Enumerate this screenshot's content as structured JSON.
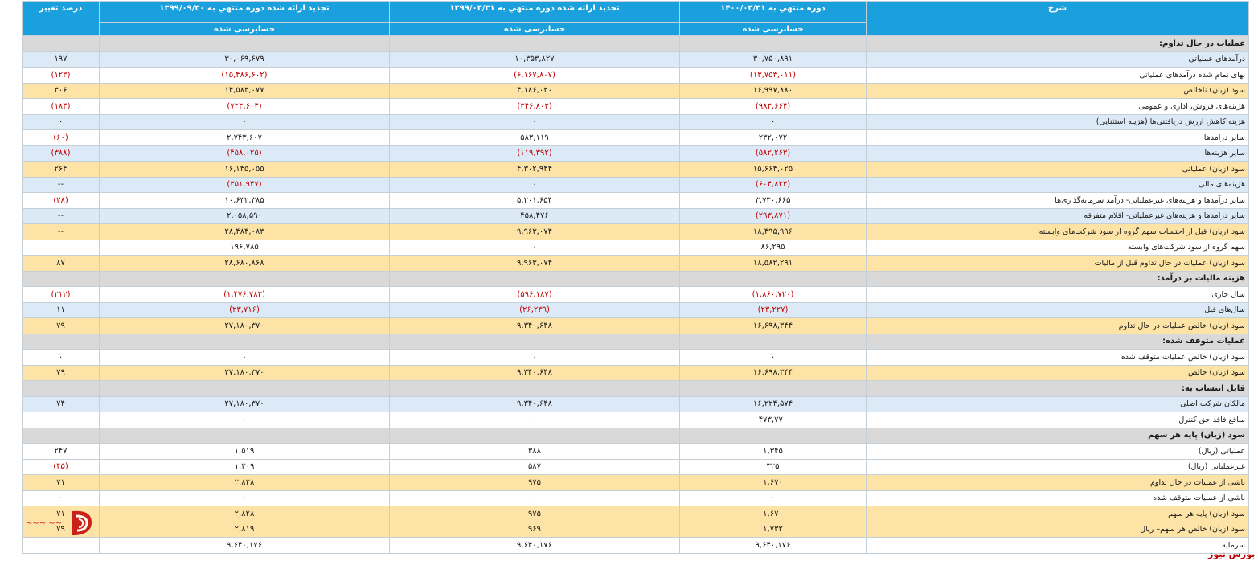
{
  "brand": {
    "name": "بورس نیوز",
    "accent": "#c00000"
  },
  "colors": {
    "header": "#1aa0dc",
    "section": "#d9d9d9",
    "row_blue": "#dce9f6",
    "row_white": "#ffffff",
    "row_total": "#fde4a6",
    "negative": "#c00000"
  },
  "header": {
    "desc": "شرح",
    "period1": "دوره منتهي به ۱۴۰۰/۰۳/۳۱",
    "period2": "تجدید ارائه شده دوره منتهي به ۱۳۹۹/۰۳/۳۱",
    "period3": "تجدید ارائه شده دوره منتهي به ۱۳۹۹/۰۹/۳۰",
    "change": "درصد تغییر",
    "audit1": "حسابرسی شده",
    "audit2": "حسابرسی شده",
    "audit3": "حسابرسی شده"
  },
  "rows": [
    {
      "type": "section",
      "label": "عملیات در حال تداوم:",
      "v1": "",
      "v2": "",
      "v3": "",
      "chg": ""
    },
    {
      "type": "blue",
      "label": "درآمدهای عملیاتی",
      "v1": "۳۰,۷۵۰,۸۹۱",
      "v2": "۱۰,۳۵۳,۸۲۷",
      "v3": "۳۰,۰۶۹,۶۷۹",
      "chg": "۱۹۷"
    },
    {
      "type": "white",
      "label": "بهای تمام شده درآمدهای عملیاتی",
      "v1": "(۱۳,۷۵۳,۰۱۱)",
      "v2": "(۶,۱۶۷,۸۰۷)",
      "v3": "(۱۵,۴۸۶,۶۰۲)",
      "chg": "(۱۲۳)",
      "neg": true
    },
    {
      "type": "total",
      "label": "سود (زیان) ناخالص",
      "v1": "۱۶,۹۹۷,۸۸۰",
      "v2": "۴,۱۸۶,۰۲۰",
      "v3": "۱۴,۵۸۳,۰۷۷",
      "chg": "۳۰۶"
    },
    {
      "type": "white",
      "label": "هزینه‌های فروش، اداری و عمومی",
      "v1": "(۹۸۳,۶۶۴)",
      "v2": "(۳۴۶,۸۰۳)",
      "v3": "(۷۲۳,۶۰۴)",
      "chg": "(۱۸۴)",
      "neg": true
    },
    {
      "type": "blue",
      "label": "هزینه کاهش ارزش دریافتنی‌ها (هزینه استثنایی)",
      "v1": "۰",
      "v2": "۰",
      "v3": "۰",
      "chg": "۰"
    },
    {
      "type": "white",
      "label": "سایر درآمدها",
      "v1": "۲۳۲,۰۷۲",
      "v2": "۵۸۳,۱۱۹",
      "v3": "۲,۷۴۳,۶۰۷",
      "chg": "(۶۰)",
      "negChg": true
    },
    {
      "type": "blue",
      "label": "سایر هزینه‌ها",
      "v1": "(۵۸۲,۲۶۳)",
      "v2": "(۱۱۹,۳۹۲)",
      "v3": "(۴۵۸,۰۲۵)",
      "chg": "(۳۸۸)",
      "neg": true
    },
    {
      "type": "total",
      "label": "سود (زیان) عملیاتی",
      "v1": "۱۵,۶۶۴,۰۲۵",
      "v2": "۴,۳۰۲,۹۴۴",
      "v3": "۱۶,۱۴۵,۰۵۵",
      "chg": "۲۶۴"
    },
    {
      "type": "blue",
      "label": "هزینه‌های مالی",
      "v1": "(۶۰۴,۸۲۳)",
      "v2": "۰",
      "v3": "(۳۵۱,۹۴۷)",
      "chg": "--",
      "negV1": true,
      "negV3": true
    },
    {
      "type": "white",
      "label": "سایر درآمدها و هزینه‌های غیرعملیاتی- درآمد سرمایه‌گذاری‌ها",
      "v1": "۳,۷۳۰,۶۶۵",
      "v2": "۵,۲۰۱,۶۵۴",
      "v3": "۱۰,۶۳۲,۳۸۵",
      "chg": "(۲۸)",
      "negChg": true
    },
    {
      "type": "blue",
      "label": "سایر درآمدها و هزینه‌های غیرعملیاتی- اقلام متفرقه",
      "v1": "(۲۹۳,۸۷۱)",
      "v2": "۴۵۸,۴۷۶",
      "v3": "۲,۰۵۸,۵۹۰",
      "chg": "--",
      "negV1": true
    },
    {
      "type": "total",
      "label": "سود (زیان) قبل از احتساب سهم گروه از سود شرکت‌های وابسته",
      "v1": "۱۸,۴۹۵,۹۹۶",
      "v2": "۹,۹۶۳,۰۷۴",
      "v3": "۲۸,۴۸۴,۰۸۳",
      "chg": "--"
    },
    {
      "type": "white",
      "label": "سهم گروه از سود شرکت‌های وابسته",
      "v1": "۸۶,۲۹۵",
      "v2": "۰",
      "v3": "۱۹۶,۷۸۵",
      "chg": ""
    },
    {
      "type": "total",
      "label": "سود (زیان) عملیات در حال تداوم قبل از مالیات",
      "v1": "۱۸,۵۸۲,۲۹۱",
      "v2": "۹,۹۶۳,۰۷۴",
      "v3": "۲۸,۶۸۰,۸۶۸",
      "chg": "۸۷"
    },
    {
      "type": "section",
      "label": "هزینه مالیات بر درآمد:",
      "v1": "",
      "v2": "",
      "v3": "",
      "chg": ""
    },
    {
      "type": "white",
      "label": "سال جاری",
      "v1": "(۱,۸۶۰,۷۲۰)",
      "v2": "(۵۹۶,۱۸۷)",
      "v3": "(۱,۴۷۶,۷۸۲)",
      "chg": "(۲۱۲)",
      "neg": true
    },
    {
      "type": "blue",
      "label": "سال‌های قبل",
      "v1": "(۲۳,۲۲۷)",
      "v2": "(۲۶,۲۳۹)",
      "v3": "(۲۳,۷۱۶)",
      "chg": "۱۱",
      "negV1": true,
      "negV2": true,
      "negV3": true
    },
    {
      "type": "total",
      "label": "سود (زیان) خالص عملیات در حال تداوم",
      "v1": "۱۶,۶۹۸,۳۴۴",
      "v2": "۹,۳۴۰,۶۴۸",
      "v3": "۲۷,۱۸۰,۳۷۰",
      "chg": "۷۹"
    },
    {
      "type": "section",
      "label": "عملیات متوقف شده:",
      "v1": "",
      "v2": "",
      "v3": "",
      "chg": ""
    },
    {
      "type": "white",
      "label": "سود (زیان) خالص عملیات متوقف شده",
      "v1": "۰",
      "v2": "۰",
      "v3": "۰",
      "chg": "۰"
    },
    {
      "type": "total",
      "label": "سود (زیان) خالص",
      "v1": "۱۶,۶۹۸,۳۴۴",
      "v2": "۹,۳۴۰,۶۴۸",
      "v3": "۲۷,۱۸۰,۳۷۰",
      "chg": "۷۹"
    },
    {
      "type": "section",
      "label": "قابل انتساب به:",
      "v1": "",
      "v2": "",
      "v3": "",
      "chg": ""
    },
    {
      "type": "blue",
      "label": "مالکان شرکت اصلی",
      "v1": "۱۶,۲۲۴,۵۷۴",
      "v2": "۹,۳۴۰,۶۴۸",
      "v3": "۲۷,۱۸۰,۳۷۰",
      "chg": "۷۴"
    },
    {
      "type": "white",
      "label": "منافع فاقد حق کنترل",
      "v1": "۴۷۳,۷۷۰",
      "v2": "۰",
      "v3": "۰",
      "chg": ""
    },
    {
      "type": "section",
      "label": "سود (زیان) پایه هر سهم",
      "v1": "",
      "v2": "",
      "v3": "",
      "chg": ""
    },
    {
      "type": "white",
      "label": "عملیاتی (ریال)",
      "v1": "۱,۳۴۵",
      "v2": "۳۸۸",
      "v3": "۱,۵۱۹",
      "chg": "۲۴۷"
    },
    {
      "type": "white",
      "label": "غیرعملیاتی (ریال)",
      "v1": "۳۲۵",
      "v2": "۵۸۷",
      "v3": "۱,۳۰۹",
      "chg": "(۴۵)",
      "negChg": true
    },
    {
      "type": "total",
      "label": "ناشی از عملیات در حال تداوم",
      "v1": "۱,۶۷۰",
      "v2": "۹۷۵",
      "v3": "۲,۸۲۸",
      "chg": "۷۱"
    },
    {
      "type": "white",
      "label": "ناشی از عملیات متوقف شده",
      "v1": "۰",
      "v2": "۰",
      "v3": "۰",
      "chg": "۰"
    },
    {
      "type": "total",
      "label": "سود (زیان) پایه هر سهم",
      "v1": "۱,۶۷۰",
      "v2": "۹۷۵",
      "v3": "۲,۸۲۸",
      "chg": "۷۱"
    },
    {
      "type": "total",
      "label": "سود (زیان) خالص هر سهم– ریال",
      "v1": "۱,۷۳۲",
      "v2": "۹۶۹",
      "v3": "۲,۸۱۹",
      "chg": "۷۹"
    },
    {
      "type": "white",
      "label": "سرمایه",
      "v1": "۹,۶۴۰,۱۷۶",
      "v2": "۹,۶۴۰,۱۷۶",
      "v3": "۹,۶۴۰,۱۷۶",
      "chg": ""
    }
  ]
}
